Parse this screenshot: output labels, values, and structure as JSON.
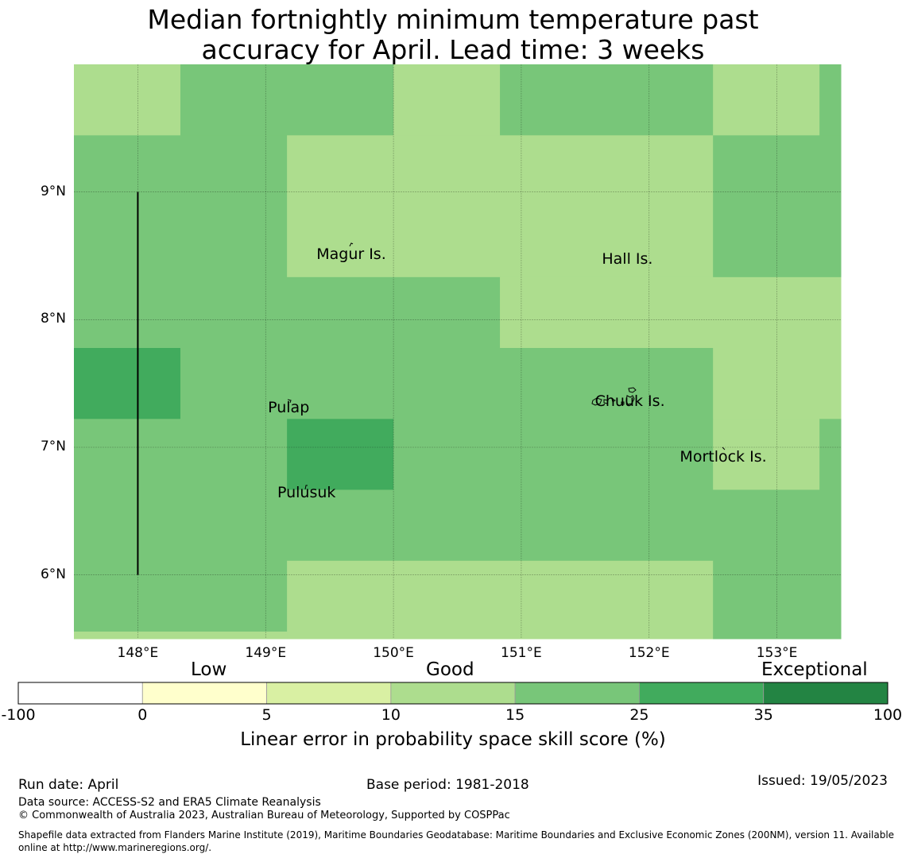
{
  "title": {
    "line1": "Median fortnightly minimum temperature past",
    "line2": "accuracy for April. Lead time: 3 weeks"
  },
  "map": {
    "lon_range": [
      147.5,
      153.5
    ],
    "lat_range": [
      5.5,
      10.0
    ],
    "lon_ticks": [
      "148°E",
      "149°E",
      "150°E",
      "151°E",
      "152°E",
      "153°E"
    ],
    "lat_ticks": [
      "9°N",
      "8°N",
      "7°N",
      "6°N"
    ],
    "grid": true,
    "cell_size_deg": [
      0.833,
      0.556
    ],
    "cells": [
      {
        "lon": [
          147.5,
          148.333
        ],
        "lat": [
          9.444,
          10.0
        ],
        "cls": 3
      },
      {
        "lon": [
          148.333,
          150.0
        ],
        "lat": [
          9.444,
          10.0
        ],
        "cls": 4
      },
      {
        "lon": [
          150.0,
          150.833
        ],
        "lat": [
          9.444,
          10.0
        ],
        "cls": 3
      },
      {
        "lon": [
          150.833,
          152.5
        ],
        "lat": [
          9.444,
          10.0
        ],
        "cls": 4
      },
      {
        "lon": [
          152.5,
          153.333
        ],
        "lat": [
          9.444,
          10.0
        ],
        "cls": 3
      },
      {
        "lon": [
          153.333,
          153.5
        ],
        "lat": [
          9.444,
          10.0
        ],
        "cls": 4
      },
      {
        "lon": [
          147.5,
          149.167
        ],
        "lat": [
          8.333,
          9.444
        ],
        "cls": 4
      },
      {
        "lon": [
          149.167,
          152.5
        ],
        "lat": [
          8.333,
          9.444
        ],
        "cls": 3
      },
      {
        "lon": [
          152.5,
          153.5
        ],
        "lat": [
          8.333,
          9.444
        ],
        "cls": 4
      },
      {
        "lon": [
          147.5,
          150.833
        ],
        "lat": [
          7.778,
          8.333
        ],
        "cls": 4
      },
      {
        "lon": [
          150.833,
          153.5
        ],
        "lat": [
          7.778,
          8.333
        ],
        "cls": 3
      },
      {
        "lon": [
          147.5,
          148.333
        ],
        "lat": [
          7.222,
          7.778
        ],
        "cls": 5
      },
      {
        "lon": [
          148.333,
          152.5
        ],
        "lat": [
          7.222,
          7.778
        ],
        "cls": 4
      },
      {
        "lon": [
          152.5,
          153.5
        ],
        "lat": [
          7.222,
          7.778
        ],
        "cls": 3
      },
      {
        "lon": [
          147.5,
          149.167
        ],
        "lat": [
          6.667,
          7.222
        ],
        "cls": 4
      },
      {
        "lon": [
          149.167,
          150.0
        ],
        "lat": [
          6.667,
          7.222
        ],
        "cls": 5
      },
      {
        "lon": [
          150.0,
          152.5
        ],
        "lat": [
          6.667,
          7.222
        ],
        "cls": 4
      },
      {
        "lon": [
          152.5,
          153.333
        ],
        "lat": [
          6.667,
          7.222
        ],
        "cls": 3
      },
      {
        "lon": [
          153.333,
          153.5
        ],
        "lat": [
          6.667,
          7.222
        ],
        "cls": 4
      },
      {
        "lon": [
          147.5,
          153.5
        ],
        "lat": [
          6.111,
          6.667
        ],
        "cls": 4
      },
      {
        "lon": [
          147.5,
          149.167
        ],
        "lat": [
          5.556,
          6.111
        ],
        "cls": 4
      },
      {
        "lon": [
          149.167,
          152.5
        ],
        "lat": [
          5.556,
          6.111
        ],
        "cls": 3
      },
      {
        "lon": [
          152.5,
          153.5
        ],
        "lat": [
          5.556,
          6.111
        ],
        "cls": 4
      },
      {
        "lon": [
          147.5,
          149.167
        ],
        "lat": [
          5.5,
          5.556
        ],
        "cls": 3
      },
      {
        "lon": [
          149.167,
          152.5
        ],
        "lat": [
          5.5,
          5.556
        ],
        "cls": 3
      },
      {
        "lon": [
          152.5,
          153.5
        ],
        "lat": [
          5.5,
          5.556
        ],
        "cls": 4
      }
    ],
    "boundary_line": {
      "lon": 148.0,
      "lat": [
        6.0,
        9.0
      ]
    },
    "places": [
      {
        "name": "Magur Is.",
        "lon": 149.67,
        "lat": 8.57
      },
      {
        "name": "Hall Is.",
        "lon": 151.83,
        "lat": 8.53
      },
      {
        "name": "Pulap",
        "lon": 149.18,
        "lat": 7.37
      },
      {
        "name": "Chuuk Is.",
        "lon": 151.85,
        "lat": 7.42
      },
      {
        "name": "Mortlock Is.",
        "lon": 152.58,
        "lat": 6.98
      },
      {
        "name": "Pulusuk",
        "lon": 149.32,
        "lat": 6.7
      }
    ]
  },
  "colorbar": {
    "categories": [
      "Low",
      "Good",
      "Exceptional"
    ],
    "ticks": [
      "-100",
      "0",
      "5",
      "10",
      "15",
      "25",
      "35",
      "100"
    ],
    "colors": [
      "#ffffff",
      "#ffffcc",
      "#d9f0a3",
      "#addd8e",
      "#78c679",
      "#41ab5d",
      "#238443"
    ],
    "label": "Linear error in probability space skill score (%)"
  },
  "footer": {
    "run_date": "Run date: April",
    "base_period": "Base period: 1981-2018",
    "issued": "Issued: 19/05/2023",
    "data_source": "Data source: ACCESS-S2 and ERA5 Climate Reanalysis",
    "copyright": "© Commonwealth of Australia 2023, Australian Bureau of Meteorology, Supported by COSPPac",
    "shapefile": "Shapefile data extracted from Flanders Marine Institute (2019), Maritime Boundaries Geodatabase: Maritime Boundaries and Exclusive Economic Zones (200NM), version 11. Available online at http://www.marineregions.org/."
  }
}
